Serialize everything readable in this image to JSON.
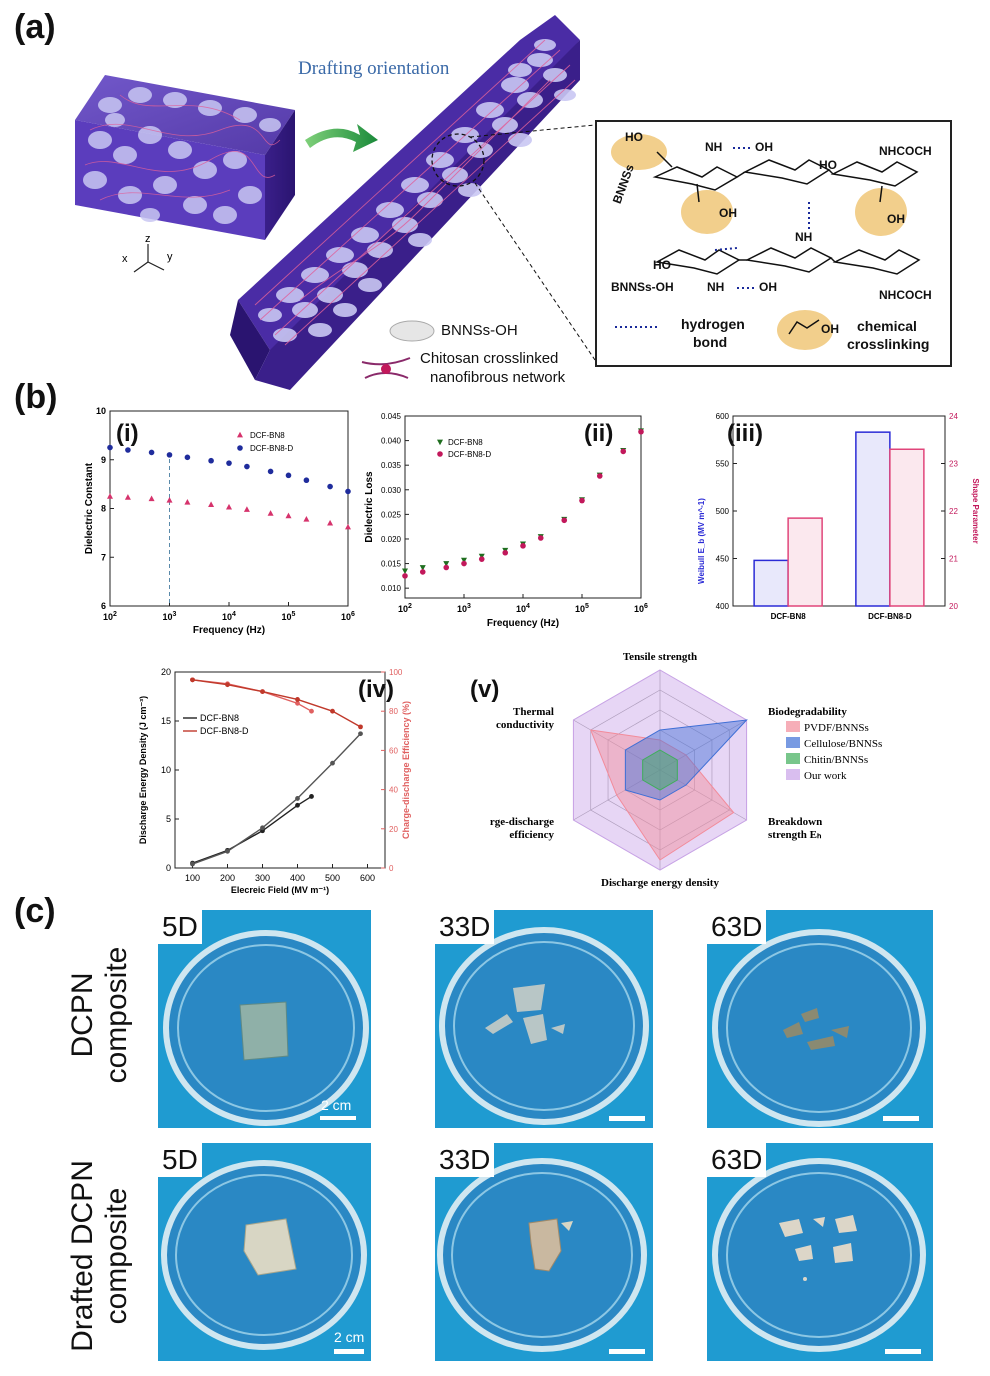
{
  "panel_a": {
    "label": "(a)",
    "drafting_orientation": "Drafting orientation",
    "axes": {
      "x": "x",
      "y": "y",
      "z": "z"
    },
    "legend": {
      "bnnss": "BNNSs-OH",
      "chitosan_line1": "Chitosan crosslinked",
      "chitosan_line2": "nanofibrous network"
    },
    "chem": {
      "bnnss_top": "BNNSs",
      "bnnss_oh": "BNNSs-OH",
      "nh2": "NH",
      "oh": "OH",
      "ho": "HO",
      "nhcoch3": "NHCOCH",
      "legend_hbond_1": "hydrogen",
      "legend_hbond_2": "bond",
      "legend_cross_1": "chemical",
      "legend_cross_2": "crosslinking"
    }
  },
  "panel_b": {
    "label": "(b)",
    "sub": {
      "i": "(i)",
      "ii": "(ii)",
      "iii": "(iii)",
      "iv": "(iv)",
      "v": "(v)"
    }
  },
  "chart_data": [
    {
      "id": "b-i",
      "type": "scatter",
      "title": "(i)",
      "xlabel": "Frequency (Hz)",
      "ylabel": "Dielectric Constant",
      "xscale": "log",
      "xlim": [
        100,
        1000000
      ],
      "ylim": [
        6,
        10
      ],
      "x_ticks": [
        "10^2",
        "10^3",
        "10^4",
        "10^5",
        "10^6"
      ],
      "y_ticks": [
        6,
        7,
        8,
        9,
        10
      ],
      "reference_line_x": 1000,
      "legend_position": "top-right",
      "x": [
        100,
        200,
        500,
        1000,
        2000,
        5000,
        10000,
        20000,
        50000,
        100000,
        200000,
        500000,
        1000000
      ],
      "series": [
        {
          "name": "DCF-BN8",
          "color": "#d6336c",
          "marker": "triangle",
          "values": [
            8.25,
            8.23,
            8.2,
            8.17,
            8.13,
            8.08,
            8.03,
            7.98,
            7.9,
            7.85,
            7.78,
            7.7,
            7.62
          ]
        },
        {
          "name": "DCF-BN8-D",
          "color": "#1f2c9c",
          "marker": "circle",
          "values": [
            9.25,
            9.2,
            9.15,
            9.1,
            9.05,
            8.98,
            8.93,
            8.86,
            8.76,
            8.68,
            8.58,
            8.45,
            8.35
          ]
        }
      ]
    },
    {
      "id": "b-ii",
      "type": "scatter",
      "title": "(ii)",
      "xlabel": "Frequency (Hz)",
      "ylabel": "Dielectric Loss",
      "xscale": "log",
      "xlim": [
        100,
        1000000
      ],
      "ylim": [
        0.008,
        0.045
      ],
      "x_ticks": [
        "10^2",
        "10^3",
        "10^4",
        "10^5",
        "10^6"
      ],
      "y_ticks": [
        0.01,
        0.015,
        0.02,
        0.025,
        0.03,
        0.035,
        0.04,
        0.045
      ],
      "legend_position": "top-left",
      "x": [
        100,
        200,
        500,
        1000,
        2000,
        5000,
        10000,
        20000,
        50000,
        100000,
        200000,
        500000,
        1000000
      ],
      "series": [
        {
          "name": "DCF-BN8",
          "color": "#1f6e1f",
          "marker": "triangle-down",
          "values": [
            0.0135,
            0.0142,
            0.015,
            0.0157,
            0.0165,
            0.0177,
            0.019,
            0.0205,
            0.024,
            0.028,
            0.033,
            0.038,
            0.042
          ]
        },
        {
          "name": "DCF-BN8-D",
          "color": "#c2185b",
          "marker": "circle",
          "values": [
            0.0125,
            0.0133,
            0.0142,
            0.015,
            0.0159,
            0.0172,
            0.0186,
            0.0202,
            0.0238,
            0.0278,
            0.0328,
            0.0378,
            0.0418
          ]
        }
      ]
    },
    {
      "id": "b-iii",
      "type": "bar",
      "title": "(iii)",
      "categories": [
        "DCF-BN8",
        "DCF-BN8-D"
      ],
      "ylabel": "Weibull E_b (MV m^-1)",
      "ylabel2": "Shape Parameter",
      "ylim": [
        400,
        600
      ],
      "ylim2": [
        20,
        24
      ],
      "y_ticks": [
        400,
        450,
        500,
        550,
        600
      ],
      "y2_ticks": [
        20,
        21,
        22,
        23,
        24
      ],
      "series": [
        {
          "name": "Weibull Eb",
          "axis": "left",
          "color": "#2b2bd6",
          "values": [
            448,
            583
          ]
        },
        {
          "name": "Shape Parameter",
          "axis": "right",
          "color": "#e0457a",
          "values": [
            21.85,
            23.3
          ]
        }
      ]
    },
    {
      "id": "b-iv",
      "type": "line",
      "title": "(iv)",
      "xlabel": "Elecreic Field (MV m⁻¹)",
      "ylabel": "Discharge Energy Density (J cm⁻³)",
      "ylabel2": "Charge-discharge Efficiency (%)",
      "xlim": [
        50,
        650
      ],
      "ylim": [
        0,
        20
      ],
      "ylim2": [
        0,
        100
      ],
      "x_ticks": [
        100,
        200,
        300,
        400,
        500,
        600
      ],
      "y_ticks": [
        0,
        5,
        10,
        15,
        20
      ],
      "y2_ticks": [
        0,
        20,
        40,
        60,
        80,
        100
      ],
      "legend_position": "left",
      "series": [
        {
          "name": "DCF-BN8",
          "axis": "left",
          "color": "#222222",
          "x": [
            100,
            200,
            300,
            400,
            440
          ],
          "values": [
            0.5,
            1.8,
            3.8,
            6.4,
            7.3
          ]
        },
        {
          "name": "DCF-BN8-D",
          "axis": "left",
          "color": "#555555",
          "x": [
            100,
            200,
            300,
            400,
            500,
            580
          ],
          "values": [
            0.4,
            1.7,
            4.1,
            7.1,
            10.7,
            13.7
          ]
        },
        {
          "name": "DCF-BN8 efficiency",
          "axis": "right",
          "color": "#e06060",
          "x": [
            100,
            200,
            300,
            400,
            440
          ],
          "values": [
            96,
            94,
            90,
            84,
            80
          ]
        },
        {
          "name": "DCF-BN8-D efficiency",
          "axis": "right",
          "color": "#c0392b",
          "x": [
            100,
            200,
            300,
            400,
            500,
            580
          ],
          "values": [
            96,
            93.5,
            90,
            86,
            80,
            72
          ]
        }
      ]
    },
    {
      "id": "b-v",
      "type": "radar",
      "title": "(v)",
      "axes": [
        "Tensile strength",
        "Biodegradability",
        "Breakdown strength E_b",
        "Discharge energy density",
        "Charge-discharge efficiency",
        "Thermal conductivity"
      ],
      "legend_position": "right",
      "series": [
        {
          "name": "PVDF/BNNSs",
          "color": "#f28b9a",
          "values": [
            0.3,
            0.3,
            0.85,
            0.9,
            0.5,
            0.8
          ]
        },
        {
          "name": "Cellulose/BNNSs",
          "color": "#3f6fd6",
          "values": [
            0.4,
            1.0,
            0.3,
            0.3,
            0.4,
            0.4
          ]
        },
        {
          "name": "Chitin/BNNSs",
          "color": "#3fae5a",
          "values": [
            0.2,
            0.2,
            0.2,
            0.2,
            0.2,
            0.2
          ]
        },
        {
          "name": "Our work",
          "color": "#c9a3e8",
          "values": [
            1.0,
            1.0,
            1.0,
            1.0,
            1.0,
            1.0
          ]
        }
      ]
    }
  ],
  "panel_c": {
    "label": "(c)",
    "row1_label_1": "DCPN",
    "row1_label_2": "composite",
    "row2_label_1": "Drafted DCPN",
    "row2_label_2": "composite",
    "days": [
      "5D",
      "33D",
      "63D"
    ],
    "scale_bar": "2 cm"
  }
}
